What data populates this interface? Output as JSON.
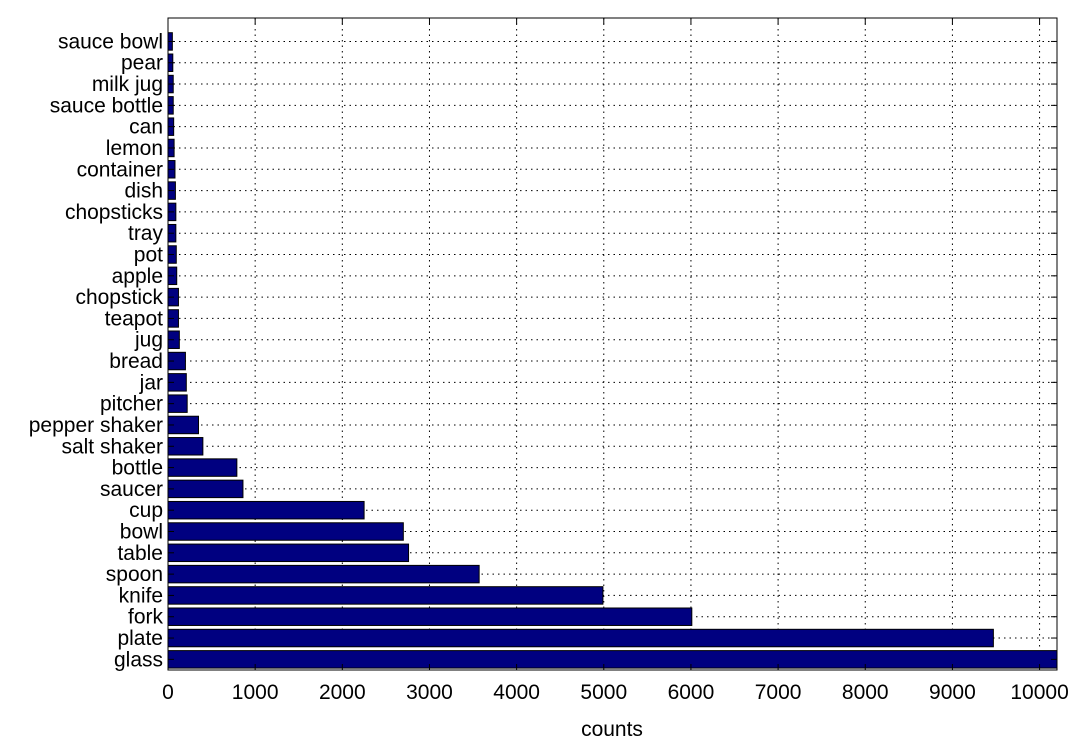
{
  "chart_data": {
    "type": "bar",
    "orientation": "horizontal",
    "title": "",
    "xlabel": "counts",
    "ylabel": "",
    "xlim": [
      0,
      10200
    ],
    "xticks": [
      0,
      1000,
      2000,
      3000,
      4000,
      5000,
      6000,
      7000,
      8000,
      9000,
      10000
    ],
    "grid": true,
    "bar_color": "#000080",
    "categories": [
      "glass",
      "plate",
      "fork",
      "knife",
      "spoon",
      "table",
      "bowl",
      "cup",
      "saucer",
      "bottle",
      "salt shaker",
      "pepper shaker",
      "pitcher",
      "jar",
      "bread",
      "jug",
      "teapot",
      "chopstick",
      "apple",
      "pot",
      "tray",
      "chopsticks",
      "dish",
      "container",
      "lemon",
      "can",
      "sauce bottle",
      "milk jug",
      "pear",
      "sauce bowl"
    ],
    "values": [
      10200,
      9470,
      6010,
      4990,
      3570,
      2760,
      2700,
      2250,
      860,
      790,
      400,
      350,
      220,
      210,
      200,
      130,
      120,
      120,
      100,
      95,
      90,
      90,
      85,
      80,
      70,
      65,
      60,
      60,
      55,
      50
    ]
  }
}
